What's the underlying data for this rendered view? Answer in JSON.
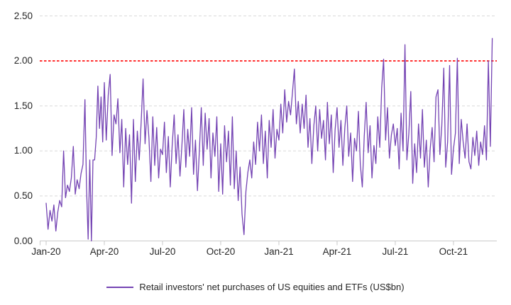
{
  "chart_data": {
    "type": "line",
    "title": "",
    "xlabel": "",
    "ylabel": "",
    "ylim": [
      0,
      2.5
    ],
    "grid": "horizontal-dashed",
    "legend_position": "bottom-center",
    "y_axis": {
      "tick_labels": [
        "0.00",
        "0.50",
        "1.00",
        "1.50",
        "2.00",
        "2.50"
      ]
    },
    "x_axis": {
      "tick_labels": [
        "Jan-20",
        "Apr-20",
        "Jul-20",
        "Oct-20",
        "Jan-21",
        "Apr-21",
        "Jul-21",
        "Oct-21"
      ],
      "tick_months": [
        0,
        3,
        6,
        9,
        12,
        15,
        18,
        21
      ],
      "unit": "months since Jan-2020"
    },
    "reference_line": {
      "value": 2.0,
      "color": "#FF0000",
      "style": "dashed"
    },
    "legend": {
      "label": "Retail investors' net purchases of US equities and ETFs (US$bn)"
    },
    "series": [
      {
        "name": "Retail investors' net purchases of US equities and ETFs (US$bn)",
        "color": "#7443B3",
        "monthly_values": [
          {
            "month": "Jan-20",
            "values": [
              0.42,
              0.13,
              0.34,
              0.22,
              0.4,
              0.11,
              0.32,
              0.45,
              0.38,
              1.0
            ]
          },
          {
            "month": "Feb-20",
            "values": [
              0.48,
              0.62,
              0.55,
              0.7,
              1.05,
              0.52,
              0.68,
              0.58,
              0.75,
              0.85
            ]
          },
          {
            "month": "Mar-20",
            "values": [
              1.57,
              0.6,
              0.02,
              0.9,
              0.0,
              0.9,
              0.9,
              1.15,
              1.72,
              1.25,
              1.6,
              1.1
            ]
          },
          {
            "month": "Apr-20",
            "values": [
              1.76,
              1.12,
              1.62,
              1.85,
              0.95,
              1.4,
              1.3,
              1.58,
              0.98,
              1.35
            ]
          },
          {
            "month": "May-20",
            "values": [
              0.6,
              1.25,
              0.85,
              1.18,
              0.42,
              1.35,
              0.66,
              1.22,
              0.9,
              1.32
            ]
          },
          {
            "month": "Jun-20",
            "values": [
              1.8,
              1.08,
              1.45,
              1.15,
              0.66,
              1.38,
              0.84,
              1.26,
              0.7,
              1.02
            ]
          },
          {
            "month": "Jul-20",
            "values": [
              0.96,
              1.32,
              0.76,
              1.16,
              0.6,
              1.06,
              1.4,
              0.86,
              1.18,
              0.72
            ]
          },
          {
            "month": "Aug-20",
            "values": [
              1.06,
              1.46,
              0.82,
              1.24,
              0.94,
              1.48,
              0.74,
              1.12,
              0.56,
              1.0
            ]
          },
          {
            "month": "Sep-20",
            "values": [
              1.48,
              0.84,
              1.42,
              1.02,
              1.36,
              0.7,
              1.2,
              0.94,
              1.38,
              0.55
            ]
          },
          {
            "month": "Oct-20",
            "values": [
              1.08,
              0.52,
              1.28,
              0.88,
              1.22,
              0.62,
              1.38,
              0.58,
              1.0,
              0.45
            ]
          },
          {
            "month": "Nov-20",
            "values": [
              0.82,
              0.3,
              0.07,
              0.55,
              0.76,
              0.9,
              0.7,
              1.1,
              0.85,
              1.32
            ]
          },
          {
            "month": "Dec-20",
            "values": [
              1.0,
              1.4,
              0.86,
              1.22,
              0.7,
              1.34,
              1.04,
              1.46,
              0.92,
              1.24
            ]
          },
          {
            "month": "Jan-21",
            "values": [
              1.12,
              1.52,
              1.2,
              1.68,
              1.32,
              1.55,
              1.4,
              1.65,
              1.91,
              1.3
            ]
          },
          {
            "month": "Feb-21",
            "values": [
              1.55,
              1.2,
              1.52,
              1.25,
              1.62,
              1.04,
              1.36,
              0.86,
              1.28,
              1.5
            ]
          },
          {
            "month": "Mar-21",
            "values": [
              1.0,
              1.46,
              1.14,
              1.34,
              0.9,
              1.54,
              1.08,
              1.4,
              0.76,
              1.24
            ]
          },
          {
            "month": "Apr-21",
            "values": [
              1.48,
              1.04,
              1.34,
              0.84,
              1.26,
              1.5,
              0.94,
              1.2,
              0.66,
              1.14
            ]
          },
          {
            "month": "May-21",
            "values": [
              1.0,
              1.44,
              0.85,
              0.6,
              1.16,
              1.54,
              0.98,
              1.28,
              0.7,
              1.06
            ]
          },
          {
            "month": "Jun-21",
            "values": [
              0.86,
              1.38,
              1.04,
              1.7,
              2.02,
              1.12,
              1.48,
              0.92,
              1.18,
              1.3
            ]
          },
          {
            "month": "Jul-21",
            "values": [
              1.06,
              1.25,
              0.8,
              1.42,
              1.0,
              2.18,
              0.9,
              1.2,
              1.66,
              0.64
            ]
          },
          {
            "month": "Aug-21",
            "values": [
              1.08,
              0.76,
              1.3,
              0.92,
              1.46,
              0.82,
              1.12,
              0.6,
              1.02,
              1.26
            ]
          },
          {
            "month": "Sep-21",
            "values": [
              0.88,
              1.6,
              1.68,
              0.96,
              1.28,
              1.92,
              0.82,
              1.1,
              1.95,
              0.74
            ]
          },
          {
            "month": "Oct-21",
            "values": [
              1.02,
              1.2,
              2.03,
              0.86,
              1.35,
              1.1,
              0.92,
              1.3,
              0.88,
              0.8
            ]
          },
          {
            "month": "Nov-21",
            "values": [
              1.15,
              0.95,
              1.22,
              0.84,
              1.1,
              0.96,
              1.28,
              0.9,
              2.0,
              1.05
            ]
          },
          {
            "month": "Dec-21",
            "values": [
              2.25
            ]
          }
        ]
      }
    ]
  },
  "colors": {
    "background": "#FFFFFF",
    "gridline": "#D9D9D9",
    "axis": "#C9C9C9",
    "text": "#262626",
    "reference": "#FF0000",
    "series": "#7443B3"
  }
}
